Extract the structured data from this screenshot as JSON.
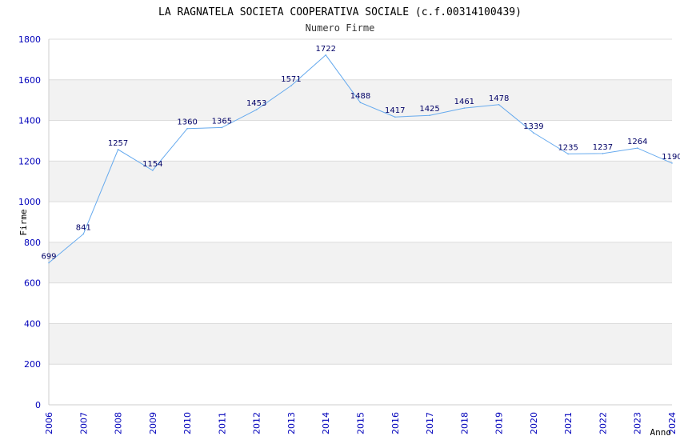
{
  "colors": {
    "band": "#f2f2f2",
    "gridline": "#dcdcdc",
    "axis": "#cccccc",
    "line": "#66aaee",
    "tick_text": "#0000bb",
    "label_text": "#000066"
  },
  "chart_data": {
    "type": "line",
    "title": "LA RAGNATELA SOCIETA COOPERATIVA SOCIALE (c.f.00314100439)",
    "subtitle": "Numero Firme",
    "xlabel": "Anno",
    "ylabel": "Firme",
    "ylim": [
      0,
      1800
    ],
    "yticks": [
      0,
      200,
      400,
      600,
      800,
      1000,
      1200,
      1400,
      1600,
      1800
    ],
    "grid": true,
    "x": [
      "2006",
      "2007",
      "2008",
      "2009",
      "2010",
      "2011",
      "2012",
      "2013",
      "2014",
      "2015",
      "2016",
      "2017",
      "2018",
      "2019",
      "2020",
      "2021",
      "2022",
      "2023",
      "2024"
    ],
    "series": [
      {
        "values": [
          699,
          841,
          1257,
          1154,
          1360,
          1365,
          1453,
          1571,
          1722,
          1488,
          1417,
          1425,
          1461,
          1478,
          1339,
          1235,
          1237,
          1264,
          1190
        ]
      }
    ]
  }
}
